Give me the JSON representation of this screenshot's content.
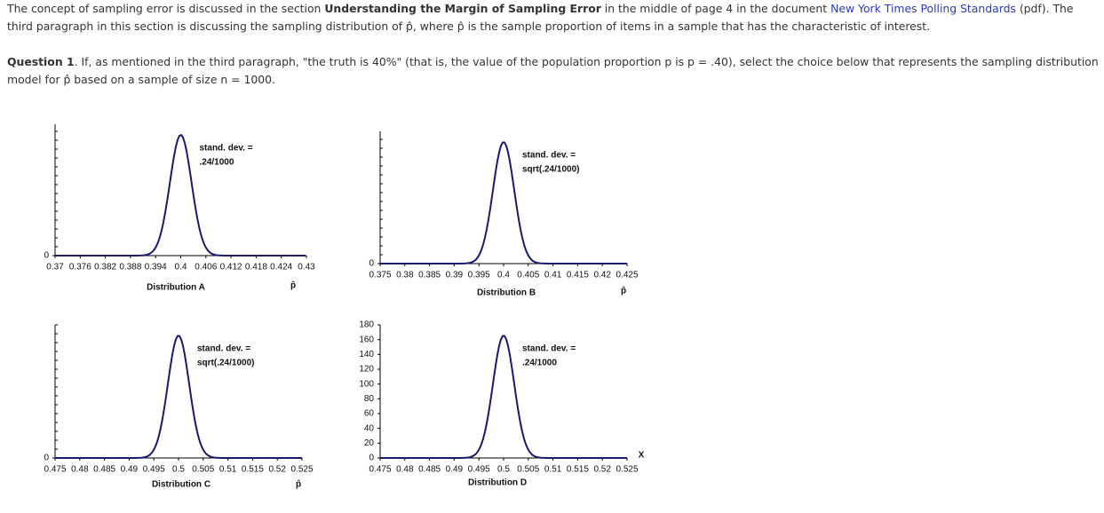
{
  "intro": {
    "before": "The concept of sampling error is discussed in the section ",
    "section": "Understanding the Margin of Sampling Error",
    "middle": " in the middle of page 4 in the document ",
    "link": "New York Times Polling Standards",
    "after": " (pdf). The third paragraph in this section is discussing the sampling distribution of p̂, where p̂ is the sample proportion of items in a sample that has the characteristic of interest."
  },
  "question": {
    "label": "Question 1",
    "text": ". If, as mentioned in the third paragraph, \"the truth is 40%\" (that is, the value of the population proportion p is p = .40), select the choice below that represents the sampling distribution model for p̂ based on a sample of size n = 1000."
  },
  "charts": [
    {
      "caption": "Distribution A",
      "annotation": [
        "stand. dev. =",
        ".24/1000"
      ],
      "x_label": "p̂",
      "xlim": [
        0.37,
        0.43
      ],
      "xticks": [
        0.37,
        0.376,
        0.382,
        0.388,
        0.394,
        0.4,
        0.406,
        0.412,
        0.418,
        0.424,
        0.43
      ],
      "yticks": [
        0
      ]
    },
    {
      "caption": "Distribution B",
      "annotation": [
        "stand. dev. =",
        "sqrt(.24/1000)"
      ],
      "x_label": "p̂",
      "xlim": [
        0.375,
        0.425
      ],
      "xticks": [
        0.375,
        0.38,
        0.385,
        0.39,
        0.395,
        0.4,
        0.405,
        0.41,
        0.415,
        0.42,
        0.425
      ],
      "yticks": [
        0
      ]
    },
    {
      "caption": "Distribution C",
      "annotation": [
        "stand. dev. =",
        "sqrt(.24/1000)"
      ],
      "x_label": "p̂",
      "xlim": [
        0.475,
        0.525
      ],
      "xticks": [
        0.475,
        0.48,
        0.485,
        0.49,
        0.495,
        0.5,
        0.505,
        0.51,
        0.515,
        0.52,
        0.525
      ],
      "yticks": [
        0
      ]
    },
    {
      "caption": "Distribution D",
      "annotation": [
        "stand. dev. =",
        ".24/1000"
      ],
      "x_label": "X",
      "xlim": [
        0.475,
        0.525
      ],
      "xticks": [
        0.475,
        0.48,
        0.485,
        0.49,
        0.495,
        0.5,
        0.505,
        0.51,
        0.515,
        0.52,
        0.525
      ],
      "ylim": [
        0,
        180
      ],
      "yticks": [
        0,
        20,
        40,
        60,
        80,
        100,
        120,
        140,
        160,
        180
      ]
    }
  ]
}
